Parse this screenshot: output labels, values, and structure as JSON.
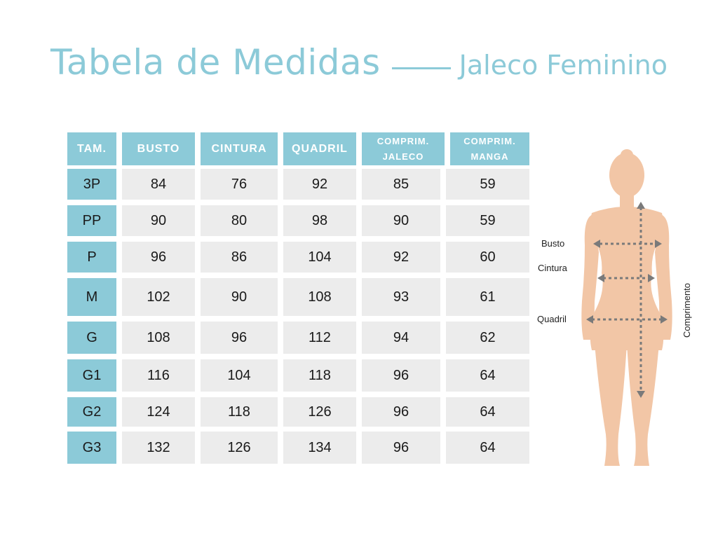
{
  "title": {
    "main": "Tabela de Medidas",
    "sub": "Jaleco Feminino"
  },
  "table": {
    "headers": [
      {
        "line1": "TAM.",
        "line2": ""
      },
      {
        "line1": "BUSTO",
        "line2": ""
      },
      {
        "line1": "CINTURA",
        "line2": ""
      },
      {
        "line1": "QUADRIL",
        "line2": ""
      },
      {
        "line1": "COMPRIM.",
        "line2": "JALECO"
      },
      {
        "line1": "COMPRIM.",
        "line2": "MANGA"
      }
    ],
    "rows": [
      {
        "size": "3P",
        "busto": "84",
        "cintura": "76",
        "quadril": "92",
        "jaleco": "85",
        "manga": "59"
      },
      {
        "size": "PP",
        "busto": "90",
        "cintura": "80",
        "quadril": "98",
        "jaleco": "90",
        "manga": "59"
      },
      {
        "size": "P",
        "busto": "96",
        "cintura": "86",
        "quadril": "104",
        "jaleco": "92",
        "manga": "60"
      },
      {
        "size": "M",
        "busto": "102",
        "cintura": "90",
        "quadril": "108",
        "jaleco": "93",
        "manga": "61"
      },
      {
        "size": "G",
        "busto": "108",
        "cintura": "96",
        "quadril": "112",
        "jaleco": "94",
        "manga": "62"
      },
      {
        "size": "G1",
        "busto": "116",
        "cintura": "104",
        "quadril": "118",
        "jaleco": "96",
        "manga": "64"
      },
      {
        "size": "G2",
        "busto": "124",
        "cintura": "118",
        "quadril": "126",
        "jaleco": "96",
        "manga": "64"
      },
      {
        "size": "G3",
        "busto": "132",
        "cintura": "126",
        "quadril": "134",
        "jaleco": "96",
        "manga": "64"
      }
    ]
  },
  "figure": {
    "labels": {
      "busto": "Busto",
      "cintura": "Cintura",
      "quadril": "Quadril",
      "comprimento": "Comprimento"
    }
  },
  "colors": {
    "accent": "#8ccad8",
    "cell": "#ececec",
    "skin": "#f2c6a6",
    "arrow": "#7a7a7a"
  }
}
